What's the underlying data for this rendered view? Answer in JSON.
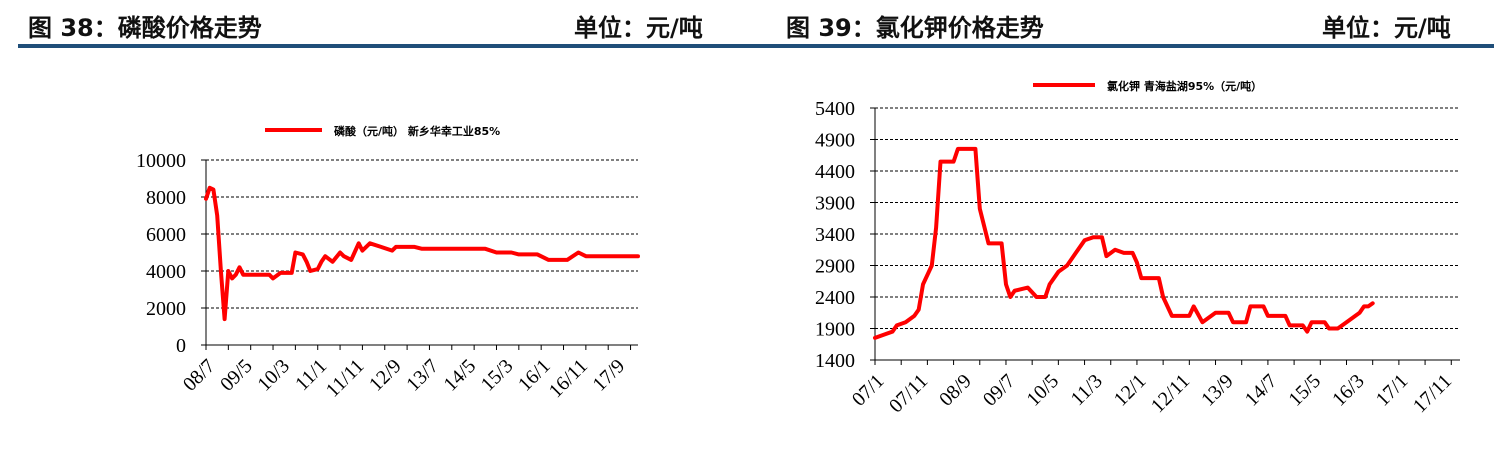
{
  "header": {
    "fig38_title": "图 38：磷酸价格走势",
    "fig38_unit": "单位：元/吨",
    "fig39_title": "图 39：氯化钾价格走势",
    "fig39_unit": "单位：元/吨"
  },
  "chart_data": [
    {
      "type": "line",
      "legend": "磷酸（元/吨） 新乡华幸工业85%",
      "ylim": [
        0,
        10000
      ],
      "yticks": [
        "0",
        "2000",
        "4000",
        "6000",
        "8000",
        "10000"
      ],
      "x_tick_labels": [
        "08/7",
        "09/5",
        "10/3",
        "11/1",
        "11/11",
        "12/9",
        "13/7",
        "14/5",
        "15/3",
        "16/1",
        "16/11",
        "17/9"
      ],
      "grid": "dashed horizontal",
      "series": [
        {
          "color": "#ff0000",
          "points": [
            [
              "08/7",
              7900
            ],
            [
              "08/8",
              8500
            ],
            [
              "08/9",
              8400
            ],
            [
              "08/10",
              7000
            ],
            [
              "08/11",
              4000
            ],
            [
              "08/12",
              1400
            ],
            [
              "09/1",
              4000
            ],
            [
              "09/2",
              3600
            ],
            [
              "09/3",
              3800
            ],
            [
              "09/4",
              4200
            ],
            [
              "09/5",
              3800
            ],
            [
              "09/8",
              3800
            ],
            [
              "09/12",
              3800
            ],
            [
              "10/1",
              3600
            ],
            [
              "10/3",
              3900
            ],
            [
              "10/6",
              3900
            ],
            [
              "10/7",
              5000
            ],
            [
              "10/9",
              4900
            ],
            [
              "10/10",
              4500
            ],
            [
              "10/11",
              4000
            ],
            [
              "11/1",
              4100
            ],
            [
              "11/2",
              4500
            ],
            [
              "11/3",
              4800
            ],
            [
              "11/5",
              4500
            ],
            [
              "11/7",
              5000
            ],
            [
              "11/8",
              4800
            ],
            [
              "11/10",
              4600
            ],
            [
              "11/12",
              5500
            ],
            [
              "12/1",
              5100
            ],
            [
              "12/3",
              5500
            ],
            [
              "12/6",
              5300
            ],
            [
              "12/9",
              5100
            ],
            [
              "12/10",
              5300
            ],
            [
              "13/3",
              5300
            ],
            [
              "13/5",
              5200
            ],
            [
              "13/9",
              5200
            ],
            [
              "14/5",
              5200
            ],
            [
              "14/10",
              5200
            ],
            [
              "15/1",
              5000
            ],
            [
              "15/5",
              5000
            ],
            [
              "15/7",
              4900
            ],
            [
              "15/12",
              4900
            ],
            [
              "16/3",
              4600
            ],
            [
              "16/8",
              4600
            ],
            [
              "16/11",
              5000
            ],
            [
              "17/1",
              4800
            ],
            [
              "17/9",
              4800
            ],
            [
              "18/3",
              4800
            ]
          ]
        }
      ]
    },
    {
      "type": "line",
      "legend": "氯化钾 青海盐湖95%（元/吨）",
      "ylim": [
        1400,
        5400
      ],
      "yticks": [
        "1400",
        "1900",
        "2400",
        "2900",
        "3400",
        "3900",
        "4400",
        "4900",
        "5400"
      ],
      "x_tick_labels": [
        "07/1",
        "07/11",
        "08/9",
        "09/7",
        "10/5",
        "11/3",
        "12/1",
        "12/11",
        "13/9",
        "14/7",
        "15/5",
        "16/3",
        "17/1",
        "17/11"
      ],
      "grid": "dashed horizontal",
      "series": [
        {
          "color": "#ff0000",
          "points": [
            [
              "07/1",
              1750
            ],
            [
              "07/3",
              1800
            ],
            [
              "07/5",
              1850
            ],
            [
              "07/6",
              1950
            ],
            [
              "07/8",
              2000
            ],
            [
              "07/10",
              2100
            ],
            [
              "07/11",
              2200
            ],
            [
              "07/12",
              2600
            ],
            [
              "08/2",
              2900
            ],
            [
              "08/3",
              3500
            ],
            [
              "08/4",
              4550
            ],
            [
              "08/7",
              4550
            ],
            [
              "08/8",
              4750
            ],
            [
              "08/12",
              4750
            ],
            [
              "09/1",
              3800
            ],
            [
              "09/3",
              3250
            ],
            [
              "09/6",
              3250
            ],
            [
              "09/7",
              2600
            ],
            [
              "09/8",
              2400
            ],
            [
              "09/9",
              2500
            ],
            [
              "09/12",
              2550
            ],
            [
              "10/2",
              2400
            ],
            [
              "10/4",
              2400
            ],
            [
              "10/5",
              2600
            ],
            [
              "10/7",
              2800
            ],
            [
              "10/9",
              2900
            ],
            [
              "10/11",
              3100
            ],
            [
              "11/1",
              3300
            ],
            [
              "11/3",
              3350
            ],
            [
              "11/5",
              3350
            ],
            [
              "11/6",
              3050
            ],
            [
              "11/8",
              3150
            ],
            [
              "11/10",
              3100
            ],
            [
              "11/12",
              3100
            ],
            [
              "12/1",
              2950
            ],
            [
              "12/2",
              2700
            ],
            [
              "12/6",
              2700
            ],
            [
              "12/7",
              2400
            ],
            [
              "12/9",
              2100
            ],
            [
              "13/1",
              2100
            ],
            [
              "13/2",
              2250
            ],
            [
              "13/4",
              2000
            ],
            [
              "13/6",
              2100
            ],
            [
              "13/7",
              2150
            ],
            [
              "13/10",
              2150
            ],
            [
              "13/11",
              2000
            ],
            [
              "14/2",
              2000
            ],
            [
              "14/3",
              2250
            ],
            [
              "14/6",
              2250
            ],
            [
              "14/7",
              2100
            ],
            [
              "14/11",
              2100
            ],
            [
              "14/12",
              1950
            ],
            [
              "15/3",
              1950
            ],
            [
              "15/4",
              1850
            ],
            [
              "15/5",
              2000
            ],
            [
              "15/8",
              2000
            ],
            [
              "15/9",
              1900
            ],
            [
              "15/11",
              1900
            ],
            [
              "16/1",
              2000
            ],
            [
              "16/4",
              2150
            ],
            [
              "16/5",
              2250
            ],
            [
              "16/6",
              2250
            ],
            [
              "16/7",
              2300
            ]
          ]
        }
      ]
    }
  ]
}
